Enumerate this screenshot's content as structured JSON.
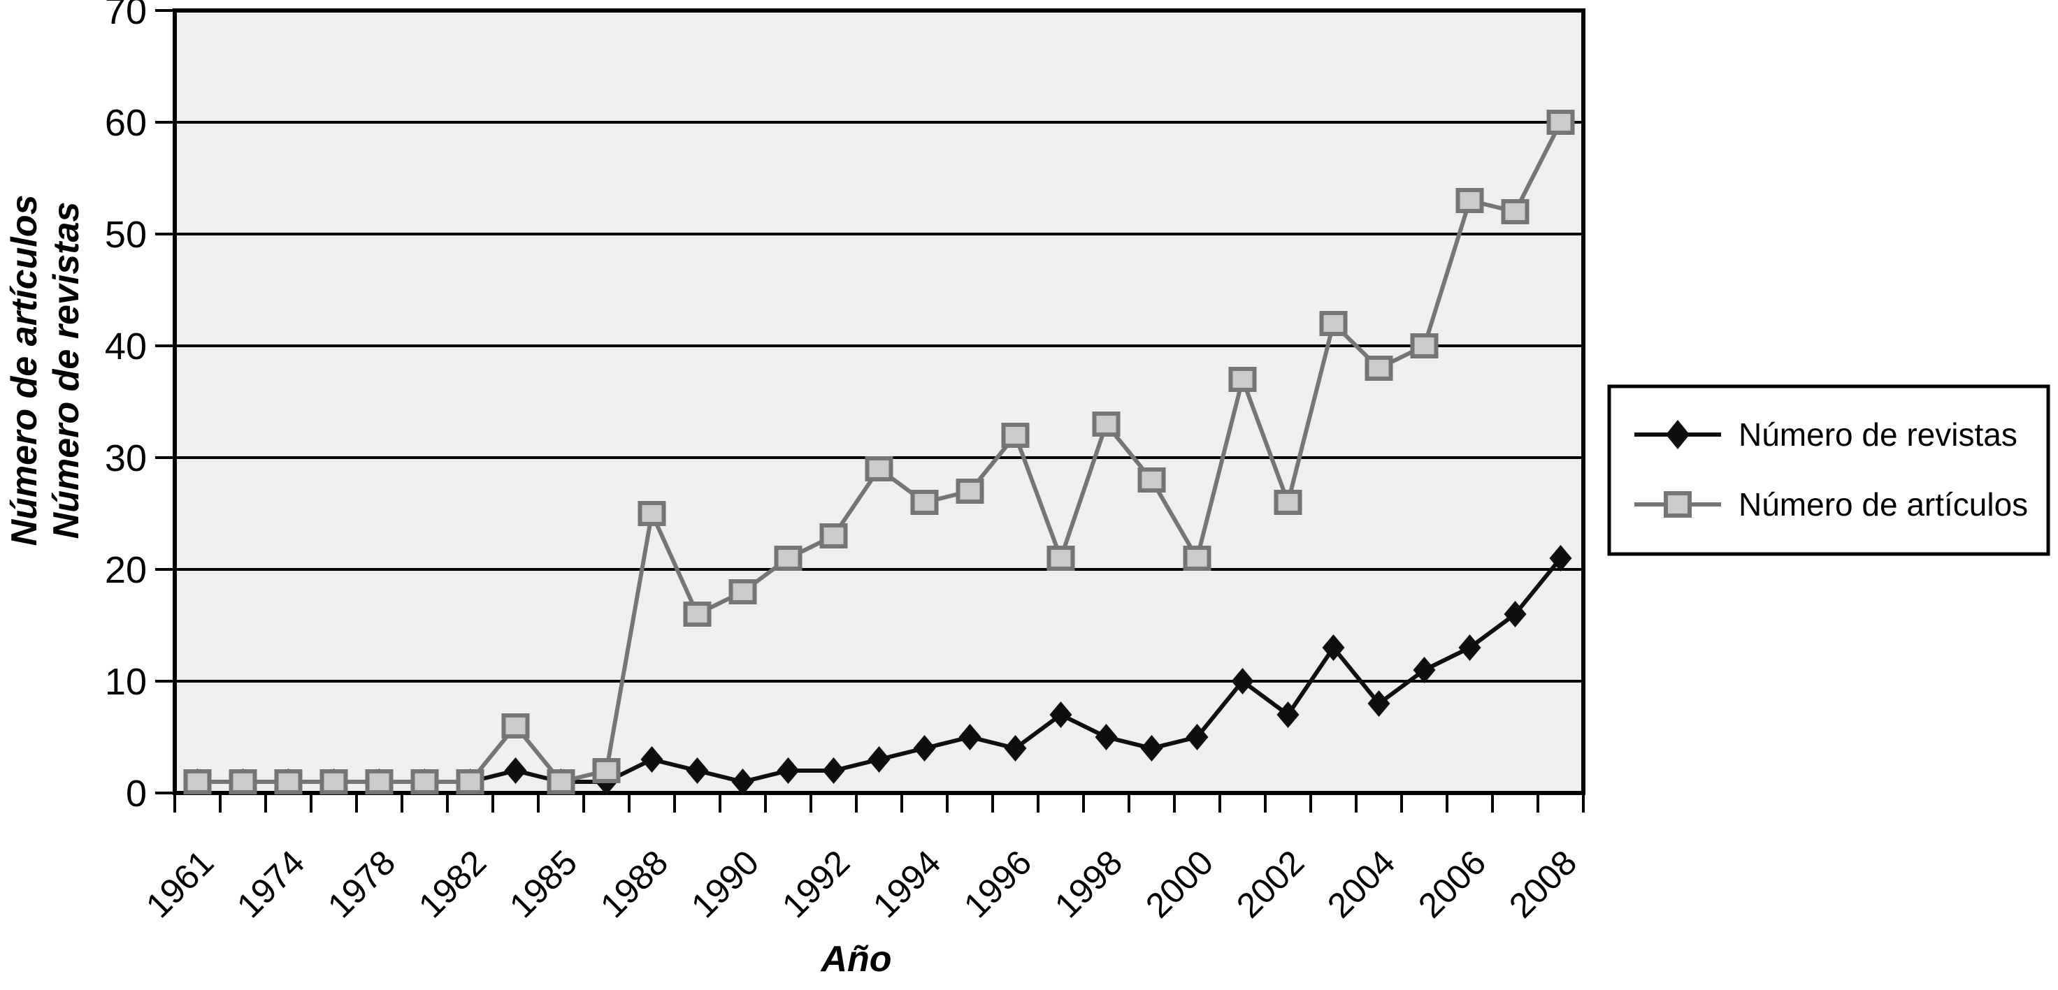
{
  "chart_data": {
    "type": "line",
    "title": "",
    "xlabel": "Año",
    "ylabel_lines": [
      "Número de artículos",
      "Número de revistas"
    ],
    "ylim": [
      0,
      70
    ],
    "yticks": [
      0,
      10,
      20,
      30,
      40,
      50,
      60,
      70
    ],
    "grid": "horizontal",
    "plot_bg": "#efefef",
    "frame_color": "#000000",
    "legend_position": "right-outside",
    "categories": [
      "1961",
      "",
      "1974",
      "",
      "1978",
      "",
      "1982",
      "",
      "1985",
      "",
      "1988",
      "",
      "1990",
      "",
      "1992",
      "",
      "1994",
      "",
      "1996",
      "",
      "1998",
      "",
      "2000",
      "",
      "2002",
      "",
      "2004",
      "",
      "2006",
      "",
      "2008"
    ],
    "visible_x_tick_labels": [
      "1961",
      "1974",
      "1978",
      "1982",
      "1985",
      "1988",
      "1990",
      "1992",
      "1994",
      "1996",
      "1998",
      "2000",
      "2002",
      "2004",
      "2006",
      "2008"
    ],
    "series": [
      {
        "name": "Número de revistas",
        "marker": "diamond",
        "color": "#0f0f0f",
        "marker_fill": "#0f0f0f",
        "values": [
          1,
          1,
          1,
          1,
          1,
          1,
          1,
          2,
          1,
          1,
          3,
          2,
          1,
          2,
          2,
          3,
          4,
          5,
          4,
          7,
          5,
          4,
          5,
          10,
          7,
          13,
          8,
          11,
          13,
          16,
          21
        ]
      },
      {
        "name": "Número de artículos",
        "marker": "square",
        "color": "#757575",
        "marker_fill": "#cbcbcb",
        "values": [
          1,
          1,
          1,
          1,
          1,
          1,
          1,
          6,
          1,
          2,
          25,
          16,
          18,
          21,
          23,
          29,
          26,
          27,
          32,
          21,
          33,
          28,
          21,
          37,
          26,
          42,
          38,
          40,
          53,
          52,
          60
        ]
      }
    ]
  },
  "legend": {
    "items": [
      {
        "label": "Número de revistas"
      },
      {
        "label": "Número de artículos"
      }
    ]
  }
}
